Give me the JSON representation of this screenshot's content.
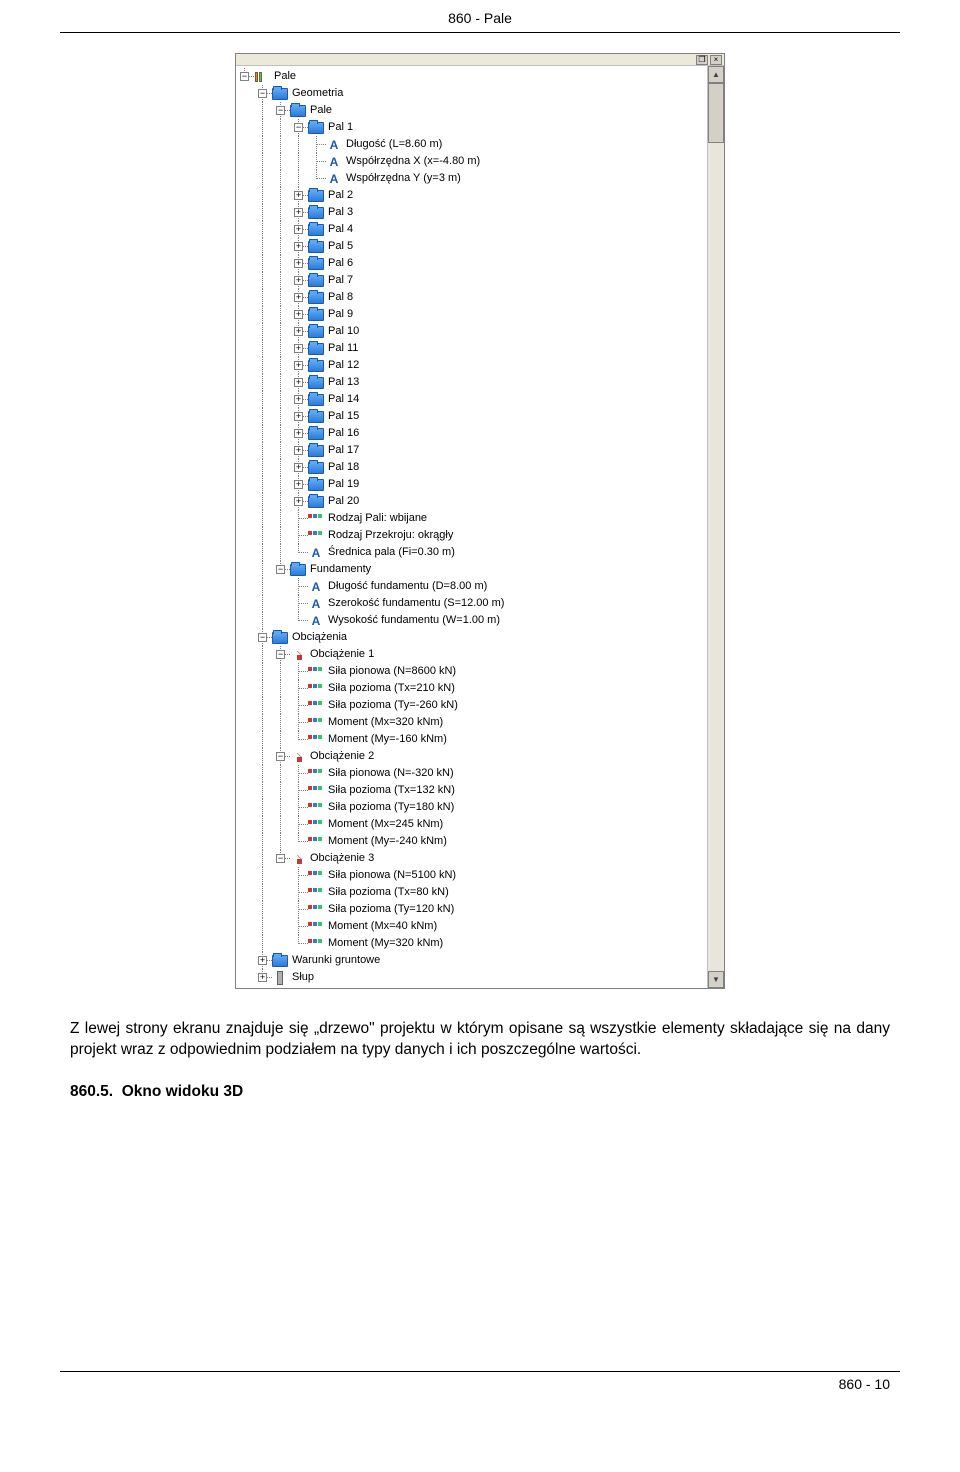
{
  "header": {
    "title": "860 - Pale"
  },
  "footer": {
    "page": "860 - 10"
  },
  "paragraph": "Z lewej strony ekranu znajduje się „drzewo\" projektu w którym opisane są wszystkie elementy składające się na dany projekt wraz z odpowiednim podziałem na typy danych i ich poszczególne wartości.",
  "section": {
    "number": "860.5.",
    "title": "Okno widoku 3D"
  },
  "tree": {
    "root": "Pale",
    "geometria": "Geometria",
    "pale_folder": "Pale",
    "pal1": "Pal 1",
    "pal1_props": [
      "Długość (L=8.60 m)",
      "Współrzędna X (x=-4.80 m)",
      "Współrzędna Y (y=3 m)"
    ],
    "pals": [
      "Pal 2",
      "Pal 3",
      "Pal 4",
      "Pal 5",
      "Pal 6",
      "Pal 7",
      "Pal 8",
      "Pal 9",
      "Pal 10",
      "Pal 11",
      "Pal 12",
      "Pal 13",
      "Pal 14",
      "Pal 15",
      "Pal 16",
      "Pal 17",
      "Pal 18",
      "Pal 19",
      "Pal 20"
    ],
    "pale_attrs": [
      "Rodzaj Pali: wbijane",
      "Rodzaj Przekroju: okrągły",
      "Średnica pala (Fi=0.30 m)"
    ],
    "fundamenty": "Fundamenty",
    "fund_props": [
      "Długość fundamentu (D=8.00 m)",
      "Szerokość fundamentu (S=12.00 m)",
      "Wysokość fundamentu (W=1.00 m)"
    ],
    "obciazenia": "Obciążenia",
    "loads": [
      {
        "name": "Obciążenie 1",
        "props": [
          "Siła pionowa (N=8600 kN)",
          "Siła pozioma (Tx=210 kN)",
          "Siła pozioma (Ty=-260 kN)",
          "Moment (Mx=320 kNm)",
          "Moment (My=-160 kNm)"
        ]
      },
      {
        "name": "Obciążenie 2",
        "props": [
          "Siła pionowa (N=-320 kN)",
          "Siła pozioma (Tx=132 kN)",
          "Siła pozioma (Ty=180 kN)",
          "Moment (Mx=245 kNm)",
          "Moment (My=-240 kNm)"
        ]
      },
      {
        "name": "Obciążenie 3",
        "props": [
          "Siła pionowa (N=5100 kN)",
          "Siła pozioma (Tx=80 kN)",
          "Siła pozioma (Ty=120 kN)",
          "Moment (Mx=40 kNm)",
          "Moment (My=320 kNm)"
        ]
      }
    ],
    "warunki": "Warunki gruntowe",
    "slup": "Słup"
  }
}
